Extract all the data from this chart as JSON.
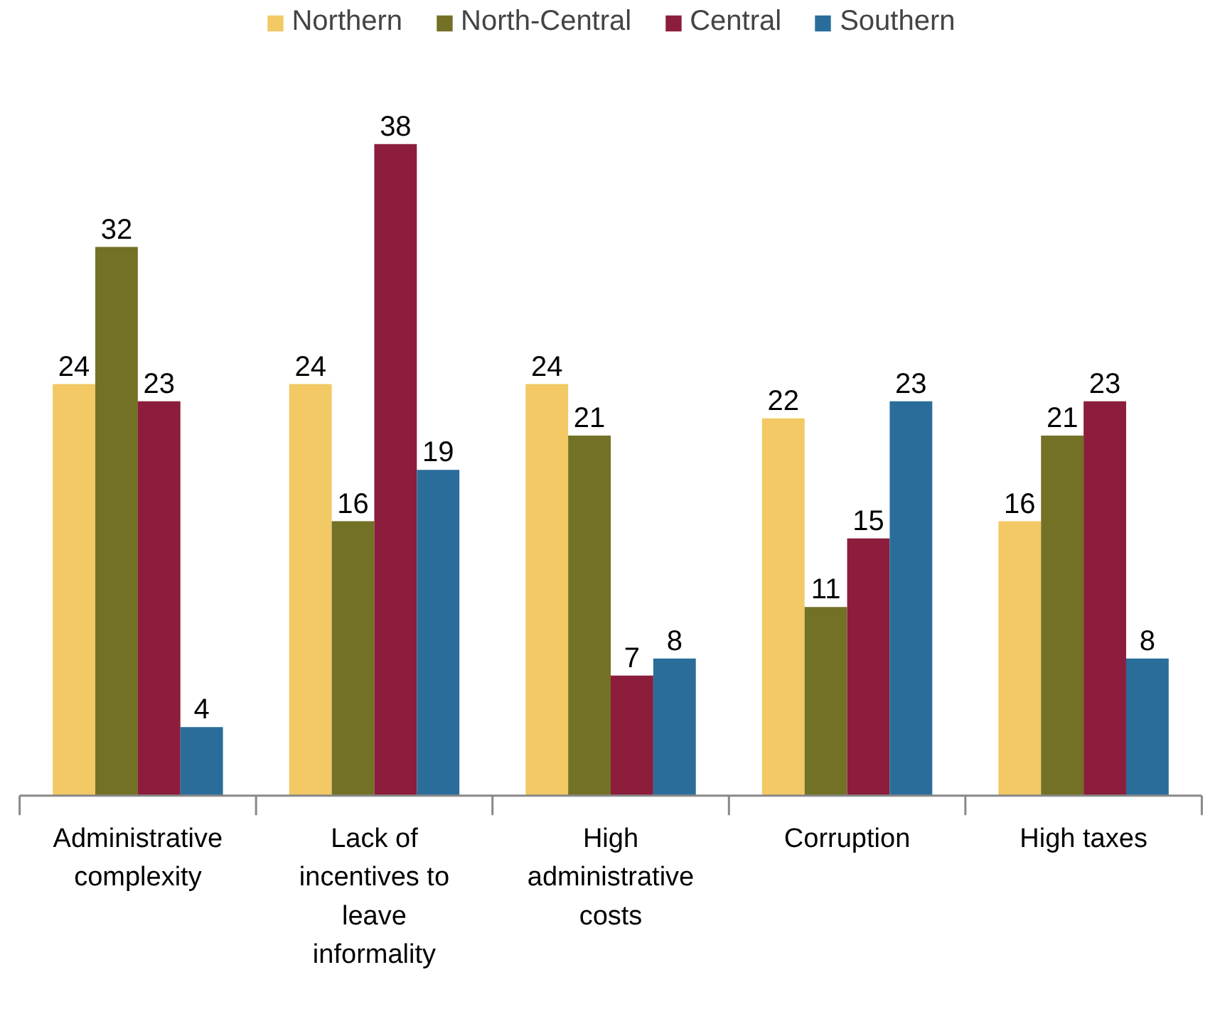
{
  "chart_data": {
    "type": "bar",
    "categories": [
      "Administrative complexity",
      "Lack of incentives to leave informality",
      "High administrative costs",
      "Corruption",
      "High taxes"
    ],
    "series": [
      {
        "name": "Northern",
        "color": "#f2c964",
        "values": [
          24,
          24,
          24,
          22,
          16
        ]
      },
      {
        "name": "North-Central",
        "color": "#737125",
        "values": [
          32,
          16,
          21,
          11,
          21
        ]
      },
      {
        "name": "Central",
        "color": "#8c1d3c",
        "values": [
          23,
          38,
          7,
          15,
          23
        ]
      },
      {
        "name": "Southern",
        "color": "#2a6d9b",
        "values": [
          4,
          19,
          8,
          23,
          8
        ]
      }
    ],
    "data_labels": true,
    "legend": "top"
  }
}
